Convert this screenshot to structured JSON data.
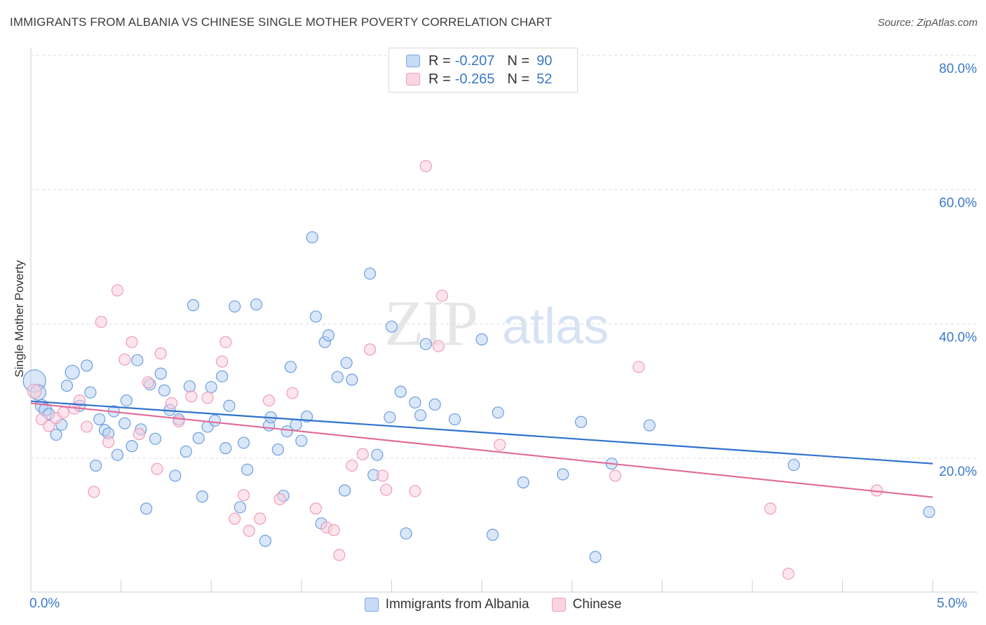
{
  "title": "IMMIGRANTS FROM ALBANIA VS CHINESE SINGLE MOTHER POVERTY CORRELATION CHART",
  "source": "Source: ZipAtlas.com",
  "watermark": {
    "zip": "ZIP",
    "atlas": "atlas"
  },
  "legend_top": [
    {
      "r_label": "R =",
      "r_value": "-0.207",
      "n_label": "N =",
      "n_value": "90",
      "color": "#7ba7e0",
      "fill": "#c7dbf5"
    },
    {
      "r_label": "R =",
      "r_value": "-0.265",
      "n_label": "N =",
      "n_value": "52",
      "color": "#f0a0bb",
      "fill": "#fad4e0"
    }
  ],
  "legend_bottom": [
    {
      "label": "Immigrants from Albania",
      "color": "#7ba7e0",
      "fill": "#c7dbf5"
    },
    {
      "label": "Chinese",
      "color": "#f0a0bb",
      "fill": "#fad4e0"
    }
  ],
  "x_axis": {
    "min_label": "0.0%",
    "max_label": "5.0%"
  },
  "chart_data": {
    "type": "scatter",
    "title": "IMMIGRANTS FROM ALBANIA VS CHINESE SINGLE MOTHER POVERTY CORRELATION CHART",
    "xlabel": "",
    "ylabel": "Single Mother Poverty",
    "xlim": [
      0,
      5
    ],
    "ylim": [
      0,
      82
    ],
    "y_ticks": [
      20,
      40,
      60,
      80
    ],
    "y_tick_labels": [
      "20.0%",
      "40.0%",
      "60.0%",
      "80.0%"
    ],
    "x_tick_labels": [
      "0.0%",
      "5.0%"
    ],
    "grid": "horizontal dashed",
    "legend_placement": "top-center",
    "series": [
      {
        "name": "Immigrants from Albania",
        "color": "#6a9de0",
        "fill": "#bcd3f2",
        "trend_color": "#2f72cf",
        "trend": {
          "x": [
            0,
            5
          ],
          "y": [
            28.5,
            19.2
          ]
        },
        "points": [
          [
            0.02,
            31.5,
            16
          ],
          [
            0.04,
            29.8,
            11
          ],
          [
            0.06,
            27.8,
            9
          ],
          [
            0.08,
            27.2,
            9
          ],
          [
            0.1,
            26.6,
            8
          ],
          [
            0.14,
            23.5,
            8
          ],
          [
            0.17,
            25,
            8
          ],
          [
            0.2,
            30.8,
            8
          ],
          [
            0.23,
            32.8,
            10
          ],
          [
            0.27,
            27.8,
            8
          ],
          [
            0.31,
            33.8,
            8
          ],
          [
            0.33,
            29.8,
            8
          ],
          [
            0.36,
            18.9,
            8
          ],
          [
            0.38,
            25.8,
            8
          ],
          [
            0.41,
            24.2,
            8
          ],
          [
            0.43,
            23.7,
            8
          ],
          [
            0.46,
            27,
            8
          ],
          [
            0.48,
            20.5,
            8
          ],
          [
            0.52,
            25.2,
            8
          ],
          [
            0.53,
            28.6,
            8
          ],
          [
            0.56,
            21.8,
            8
          ],
          [
            0.59,
            34.6,
            8
          ],
          [
            0.61,
            24.3,
            8
          ],
          [
            0.64,
            12.5,
            8
          ],
          [
            0.66,
            31,
            8
          ],
          [
            0.69,
            22.9,
            8
          ],
          [
            0.72,
            32.6,
            8
          ],
          [
            0.74,
            30.1,
            8
          ],
          [
            0.77,
            27.2,
            8
          ],
          [
            0.8,
            17.4,
            8
          ],
          [
            0.82,
            25.8,
            8
          ],
          [
            0.86,
            21,
            8
          ],
          [
            0.88,
            30.7,
            8
          ],
          [
            0.9,
            42.8,
            8
          ],
          [
            0.93,
            23,
            8
          ],
          [
            0.95,
            14.3,
            8
          ],
          [
            0.98,
            24.7,
            8
          ],
          [
            1.0,
            30.6,
            8
          ],
          [
            1.02,
            25.6,
            8
          ],
          [
            1.06,
            32.2,
            8
          ],
          [
            1.08,
            21.5,
            8
          ],
          [
            1.1,
            27.8,
            8
          ],
          [
            1.13,
            42.6,
            8
          ],
          [
            1.16,
            12.7,
            8
          ],
          [
            1.18,
            22.3,
            8
          ],
          [
            1.2,
            18.3,
            8
          ],
          [
            1.25,
            42.9,
            8
          ],
          [
            1.3,
            7.7,
            8
          ],
          [
            1.32,
            24.9,
            8
          ],
          [
            1.33,
            26.1,
            8
          ],
          [
            1.37,
            21.3,
            8
          ],
          [
            1.4,
            14.4,
            8
          ],
          [
            1.42,
            24,
            8
          ],
          [
            1.44,
            33.6,
            8
          ],
          [
            1.47,
            25,
            8
          ],
          [
            1.5,
            22.6,
            8
          ],
          [
            1.53,
            26.2,
            8
          ],
          [
            1.56,
            52.9,
            8
          ],
          [
            1.58,
            41.1,
            8
          ],
          [
            1.61,
            10.3,
            8
          ],
          [
            1.63,
            37.3,
            8
          ],
          [
            1.65,
            38.3,
            8
          ],
          [
            1.7,
            32.1,
            8
          ],
          [
            1.74,
            15.2,
            8
          ],
          [
            1.75,
            34.2,
            8
          ],
          [
            1.78,
            31.7,
            8
          ],
          [
            1.88,
            47.5,
            8
          ],
          [
            1.9,
            17.5,
            8
          ],
          [
            1.92,
            20.5,
            8
          ],
          [
            1.99,
            26.1,
            8
          ],
          [
            2.0,
            39.6,
            8
          ],
          [
            2.05,
            29.9,
            8
          ],
          [
            2.08,
            8.8,
            8
          ],
          [
            2.13,
            28.3,
            8
          ],
          [
            2.16,
            26.4,
            8
          ],
          [
            2.19,
            37,
            8
          ],
          [
            2.24,
            28,
            8
          ],
          [
            2.35,
            25.8,
            8
          ],
          [
            2.5,
            37.7,
            8
          ],
          [
            2.56,
            8.6,
            8
          ],
          [
            2.59,
            26.8,
            8
          ],
          [
            2.73,
            16.4,
            8
          ],
          [
            2.95,
            17.6,
            8
          ],
          [
            3.05,
            25.4,
            8
          ],
          [
            3.13,
            5.3,
            8
          ],
          [
            3.22,
            19.2,
            8
          ],
          [
            3.43,
            24.9,
            8
          ],
          [
            4.23,
            19,
            8
          ],
          [
            4.98,
            12,
            8
          ]
        ]
      },
      {
        "name": "Chinese",
        "color": "#ef9cb7",
        "fill": "#f9cfdc",
        "trend_color": "#e26a97",
        "trend": {
          "x": [
            0,
            5
          ],
          "y": [
            28.2,
            14.2
          ]
        },
        "points": [
          [
            0.02,
            30,
            10
          ],
          [
            0.06,
            25.8,
            8
          ],
          [
            0.1,
            24.8,
            8
          ],
          [
            0.14,
            26,
            8
          ],
          [
            0.18,
            26.8,
            8
          ],
          [
            0.24,
            27.4,
            8
          ],
          [
            0.27,
            28.6,
            8
          ],
          [
            0.31,
            24.7,
            8
          ],
          [
            0.35,
            15,
            8
          ],
          [
            0.39,
            40.3,
            8
          ],
          [
            0.43,
            22.4,
            8
          ],
          [
            0.48,
            45,
            8
          ],
          [
            0.52,
            34.7,
            8
          ],
          [
            0.56,
            37.3,
            8
          ],
          [
            0.6,
            23.6,
            8
          ],
          [
            0.65,
            31.3,
            8
          ],
          [
            0.7,
            18.4,
            8
          ],
          [
            0.72,
            35.6,
            8
          ],
          [
            0.78,
            28.2,
            8
          ],
          [
            0.82,
            25.5,
            8
          ],
          [
            0.89,
            29.2,
            8
          ],
          [
            0.98,
            29,
            8
          ],
          [
            1.06,
            34.4,
            8
          ],
          [
            1.08,
            37.3,
            8
          ],
          [
            1.13,
            11,
            8
          ],
          [
            1.18,
            14.5,
            8
          ],
          [
            1.21,
            9.2,
            8
          ],
          [
            1.27,
            11,
            8
          ],
          [
            1.32,
            28.6,
            8
          ],
          [
            1.38,
            13.9,
            8
          ],
          [
            1.45,
            29.7,
            8
          ],
          [
            1.58,
            12.5,
            8
          ],
          [
            1.64,
            9.7,
            8
          ],
          [
            1.68,
            9.3,
            8
          ],
          [
            1.71,
            5.6,
            8
          ],
          [
            1.78,
            18.9,
            8
          ],
          [
            1.84,
            20.6,
            8
          ],
          [
            1.88,
            36.2,
            8
          ],
          [
            1.95,
            17.4,
            8
          ],
          [
            1.97,
            15.3,
            8
          ],
          [
            2.13,
            15.1,
            8
          ],
          [
            2.19,
            63.5,
            8
          ],
          [
            2.26,
            36.7,
            8
          ],
          [
            2.28,
            44.2,
            8
          ],
          [
            2.6,
            22,
            8
          ],
          [
            3.24,
            17.4,
            8
          ],
          [
            3.37,
            33.6,
            8
          ],
          [
            4.1,
            12.5,
            8
          ],
          [
            4.2,
            2.8,
            8
          ],
          [
            4.69,
            15.2,
            8
          ]
        ]
      }
    ]
  }
}
